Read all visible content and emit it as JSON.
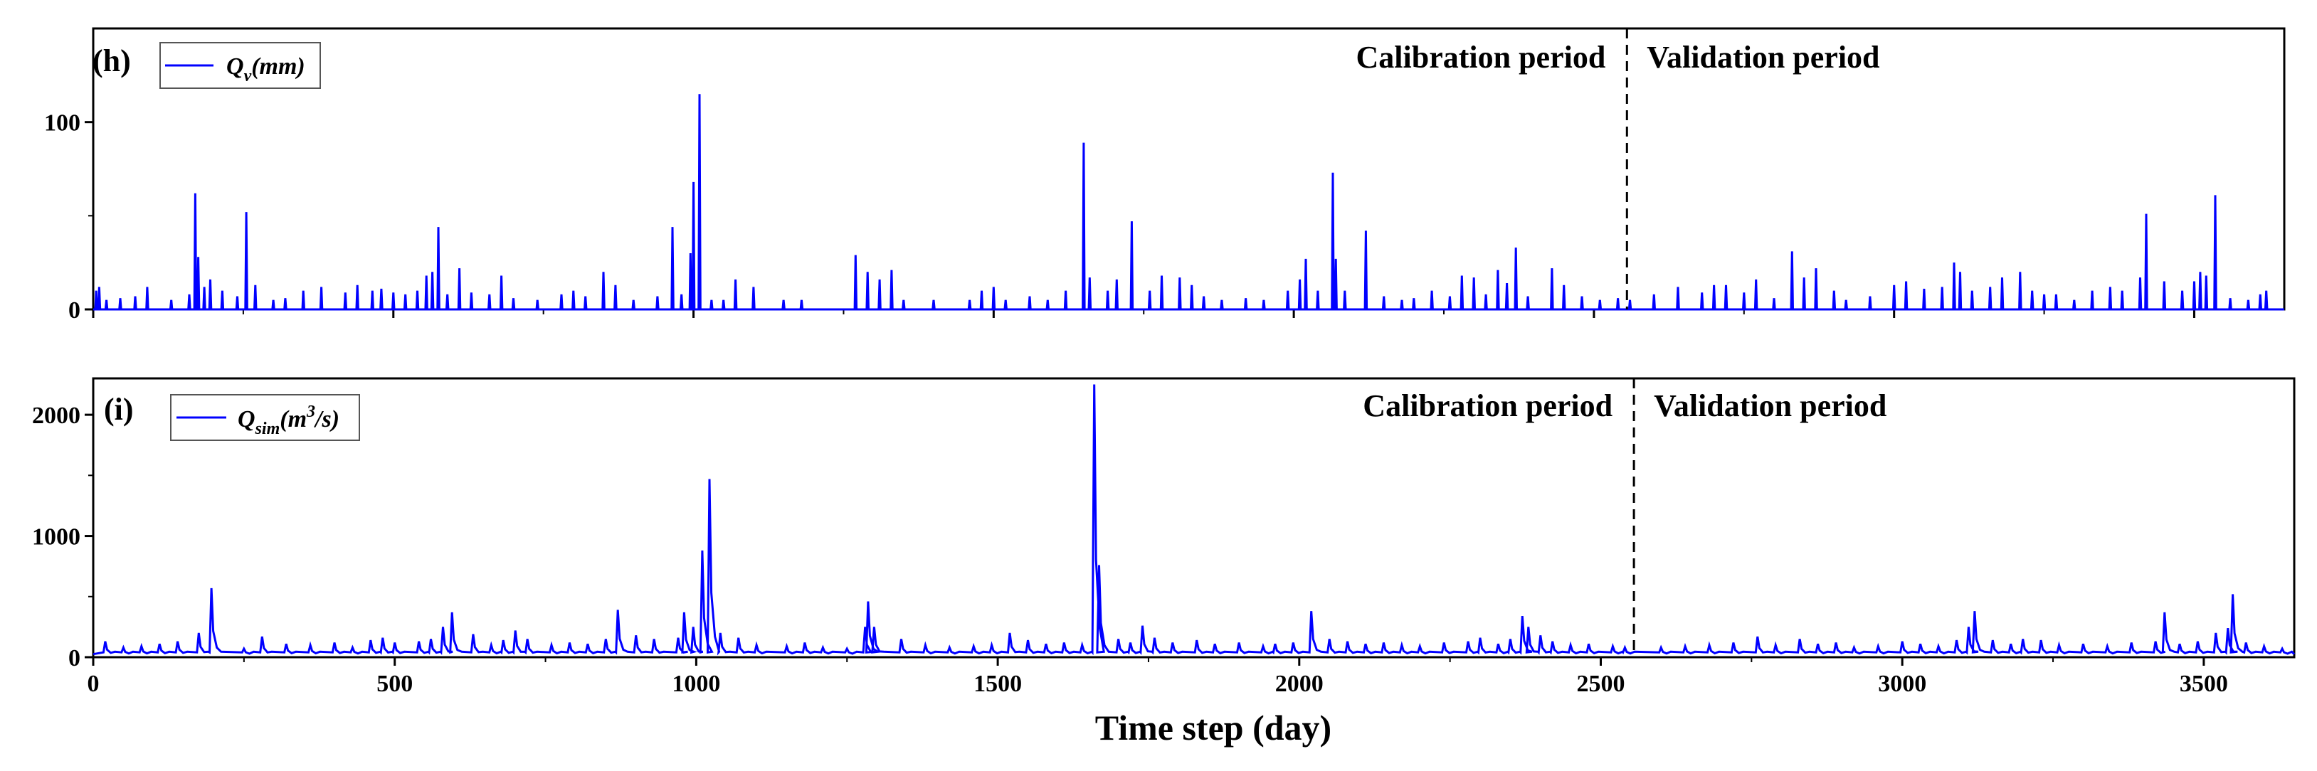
{
  "chart_data": [
    {
      "type": "line",
      "panel_label": "(h)",
      "legend": "Qv(mm)",
      "legend_parts": {
        "base": "Q",
        "sub": "v",
        "rest": "(mm)"
      },
      "series_color": "#0000ff",
      "xlim": [
        0,
        3650
      ],
      "ylim": [
        0,
        150
      ],
      "x_ticks": [
        0,
        500,
        1000,
        1500,
        2000,
        2500,
        3000,
        3500
      ],
      "y_ticks": [
        0,
        100
      ],
      "y_tick_labels": [
        "0",
        "100"
      ],
      "split_x": 2555,
      "calibration_label": "Calibration period",
      "validation_label": "Validation period",
      "peaks": [
        [
          5,
          10
        ],
        [
          10,
          12
        ],
        [
          22,
          5
        ],
        [
          45,
          6
        ],
        [
          70,
          7
        ],
        [
          90,
          12
        ],
        [
          130,
          5
        ],
        [
          160,
          8
        ],
        [
          170,
          62
        ],
        [
          175,
          28
        ],
        [
          185,
          12
        ],
        [
          195,
          16
        ],
        [
          215,
          10
        ],
        [
          240,
          7
        ],
        [
          255,
          52
        ],
        [
          270,
          13
        ],
        [
          300,
          5
        ],
        [
          320,
          6
        ],
        [
          350,
          10
        ],
        [
          380,
          12
        ],
        [
          420,
          9
        ],
        [
          440,
          13
        ],
        [
          465,
          10
        ],
        [
          480,
          11
        ],
        [
          500,
          9
        ],
        [
          520,
          8
        ],
        [
          540,
          10
        ],
        [
          555,
          18
        ],
        [
          565,
          20
        ],
        [
          575,
          44
        ],
        [
          590,
          8
        ],
        [
          610,
          22
        ],
        [
          630,
          9
        ],
        [
          660,
          8
        ],
        [
          680,
          18
        ],
        [
          700,
          6
        ],
        [
          740,
          5
        ],
        [
          780,
          8
        ],
        [
          800,
          10
        ],
        [
          820,
          7
        ],
        [
          850,
          20
        ],
        [
          870,
          13
        ],
        [
          900,
          5
        ],
        [
          940,
          7
        ],
        [
          965,
          44
        ],
        [
          980,
          8
        ],
        [
          995,
          30
        ],
        [
          1000,
          68
        ],
        [
          1010,
          115
        ],
        [
          1030,
          5
        ],
        [
          1050,
          5
        ],
        [
          1070,
          16
        ],
        [
          1100,
          12
        ],
        [
          1150,
          5
        ],
        [
          1180,
          5
        ],
        [
          1270,
          29
        ],
        [
          1290,
          20
        ],
        [
          1310,
          16
        ],
        [
          1330,
          21
        ],
        [
          1350,
          5
        ],
        [
          1400,
          5
        ],
        [
          1460,
          5
        ],
        [
          1480,
          10
        ],
        [
          1500,
          12
        ],
        [
          1520,
          5
        ],
        [
          1560,
          7
        ],
        [
          1590,
          5
        ],
        [
          1620,
          10
        ],
        [
          1650,
          89
        ],
        [
          1660,
          17
        ],
        [
          1690,
          10
        ],
        [
          1705,
          16
        ],
        [
          1730,
          47
        ],
        [
          1760,
          10
        ],
        [
          1780,
          18
        ],
        [
          1810,
          17
        ],
        [
          1830,
          13
        ],
        [
          1850,
          7
        ],
        [
          1880,
          5
        ],
        [
          1920,
          6
        ],
        [
          1950,
          5
        ],
        [
          1990,
          10
        ],
        [
          2010,
          16
        ],
        [
          2020,
          27
        ],
        [
          2040,
          10
        ],
        [
          2065,
          73
        ],
        [
          2070,
          27
        ],
        [
          2085,
          10
        ],
        [
          2120,
          42
        ],
        [
          2150,
          7
        ],
        [
          2180,
          5
        ],
        [
          2200,
          6
        ],
        [
          2230,
          10
        ],
        [
          2260,
          7
        ],
        [
          2280,
          18
        ],
        [
          2300,
          17
        ],
        [
          2320,
          8
        ],
        [
          2340,
          21
        ],
        [
          2355,
          14
        ],
        [
          2370,
          33
        ],
        [
          2390,
          7
        ],
        [
          2430,
          22
        ],
        [
          2450,
          13
        ],
        [
          2480,
          7
        ],
        [
          2510,
          5
        ],
        [
          2540,
          6
        ],
        [
          2560,
          5
        ],
        [
          2600,
          8
        ],
        [
          2640,
          12
        ],
        [
          2680,
          9
        ],
        [
          2700,
          13
        ],
        [
          2720,
          13
        ],
        [
          2750,
          9
        ],
        [
          2770,
          16
        ],
        [
          2800,
          6
        ],
        [
          2830,
          31
        ],
        [
          2850,
          17
        ],
        [
          2870,
          22
        ],
        [
          2900,
          10
        ],
        [
          2920,
          5
        ],
        [
          2960,
          7
        ],
        [
          3000,
          13
        ],
        [
          3020,
          15
        ],
        [
          3050,
          11
        ],
        [
          3080,
          12
        ],
        [
          3100,
          25
        ],
        [
          3110,
          20
        ],
        [
          3130,
          10
        ],
        [
          3160,
          12
        ],
        [
          3180,
          17
        ],
        [
          3210,
          20
        ],
        [
          3230,
          10
        ],
        [
          3250,
          8
        ],
        [
          3270,
          8
        ],
        [
          3300,
          5
        ],
        [
          3330,
          10
        ],
        [
          3360,
          12
        ],
        [
          3380,
          10
        ],
        [
          3410,
          17
        ],
        [
          3420,
          51
        ],
        [
          3450,
          15
        ],
        [
          3480,
          10
        ],
        [
          3500,
          15
        ],
        [
          3510,
          20
        ],
        [
          3520,
          18
        ],
        [
          3535,
          61
        ],
        [
          3560,
          6
        ],
        [
          3590,
          5
        ],
        [
          3610,
          8
        ],
        [
          3620,
          10
        ]
      ]
    },
    {
      "type": "line",
      "panel_label": "(i)",
      "legend": "Qsim(m3/s)",
      "legend_parts": {
        "base": "Q",
        "sub": "sim",
        "rest": "(m",
        "sup": "3",
        "tail": "/s)"
      },
      "series_color": "#0000ff",
      "xlabel": "Time step (day)",
      "xlim": [
        0,
        3650
      ],
      "ylim": [
        0,
        2300
      ],
      "x_ticks": [
        0,
        500,
        1000,
        1500,
        2000,
        2500,
        3000,
        3500
      ],
      "x_tick_labels": [
        "0",
        "500",
        "1000",
        "1500",
        "2000",
        "2500",
        "3000",
        "3500"
      ],
      "y_ticks": [
        0,
        1000,
        2000
      ],
      "y_tick_labels": [
        "0",
        "1000",
        "2000"
      ],
      "split_x": 2555,
      "calibration_label": "Calibration period",
      "validation_label": "Validation period",
      "peaks": [
        [
          20,
          130
        ],
        [
          50,
          80
        ],
        [
          80,
          90
        ],
        [
          110,
          110
        ],
        [
          140,
          130
        ],
        [
          175,
          200
        ],
        [
          196,
          570
        ],
        [
          250,
          70
        ],
        [
          280,
          170
        ],
        [
          320,
          110
        ],
        [
          360,
          100
        ],
        [
          400,
          120
        ],
        [
          430,
          80
        ],
        [
          460,
          140
        ],
        [
          480,
          160
        ],
        [
          500,
          120
        ],
        [
          540,
          130
        ],
        [
          560,
          150
        ],
        [
          580,
          250
        ],
        [
          595,
          370
        ],
        [
          630,
          190
        ],
        [
          660,
          100
        ],
        [
          680,
          140
        ],
        [
          700,
          220
        ],
        [
          720,
          150
        ],
        [
          760,
          100
        ],
        [
          790,
          120
        ],
        [
          820,
          110
        ],
        [
          850,
          150
        ],
        [
          870,
          390
        ],
        [
          900,
          180
        ],
        [
          930,
          150
        ],
        [
          970,
          160
        ],
        [
          980,
          370
        ],
        [
          995,
          250
        ],
        [
          1010,
          880
        ],
        [
          1022,
          1470
        ],
        [
          1040,
          200
        ],
        [
          1070,
          160
        ],
        [
          1100,
          100
        ],
        [
          1150,
          90
        ],
        [
          1180,
          120
        ],
        [
          1210,
          80
        ],
        [
          1250,
          70
        ],
        [
          1280,
          250
        ],
        [
          1285,
          460
        ],
        [
          1295,
          250
        ],
        [
          1340,
          150
        ],
        [
          1380,
          100
        ],
        [
          1420,
          80
        ],
        [
          1460,
          90
        ],
        [
          1490,
          100
        ],
        [
          1520,
          200
        ],
        [
          1550,
          140
        ],
        [
          1580,
          110
        ],
        [
          1610,
          120
        ],
        [
          1640,
          100
        ],
        [
          1660,
          2250
        ],
        [
          1668,
          760
        ],
        [
          1700,
          150
        ],
        [
          1720,
          120
        ],
        [
          1740,
          260
        ],
        [
          1760,
          160
        ],
        [
          1790,
          120
        ],
        [
          1830,
          140
        ],
        [
          1860,
          110
        ],
        [
          1900,
          120
        ],
        [
          1940,
          90
        ],
        [
          1960,
          110
        ],
        [
          1990,
          120
        ],
        [
          2020,
          380
        ],
        [
          2050,
          150
        ],
        [
          2080,
          130
        ],
        [
          2110,
          110
        ],
        [
          2140,
          120
        ],
        [
          2170,
          100
        ],
        [
          2200,
          90
        ],
        [
          2240,
          120
        ],
        [
          2280,
          130
        ],
        [
          2300,
          160
        ],
        [
          2330,
          110
        ],
        [
          2350,
          150
        ],
        [
          2370,
          340
        ],
        [
          2380,
          250
        ],
        [
          2400,
          180
        ],
        [
          2420,
          130
        ],
        [
          2450,
          100
        ],
        [
          2480,
          110
        ],
        [
          2520,
          90
        ],
        [
          2540,
          80
        ],
        [
          2600,
          80
        ],
        [
          2640,
          90
        ],
        [
          2680,
          100
        ],
        [
          2720,
          120
        ],
        [
          2760,
          170
        ],
        [
          2790,
          100
        ],
        [
          2830,
          150
        ],
        [
          2860,
          110
        ],
        [
          2890,
          120
        ],
        [
          2920,
          80
        ],
        [
          2960,
          90
        ],
        [
          3000,
          130
        ],
        [
          3030,
          110
        ],
        [
          3060,
          90
        ],
        [
          3090,
          140
        ],
        [
          3110,
          250
        ],
        [
          3120,
          380
        ],
        [
          3150,
          140
        ],
        [
          3180,
          110
        ],
        [
          3200,
          150
        ],
        [
          3230,
          140
        ],
        [
          3260,
          100
        ],
        [
          3300,
          110
        ],
        [
          3340,
          90
        ],
        [
          3380,
          120
        ],
        [
          3420,
          130
        ],
        [
          3435,
          370
        ],
        [
          3460,
          110
        ],
        [
          3490,
          130
        ],
        [
          3520,
          200
        ],
        [
          3540,
          240
        ],
        [
          3548,
          520
        ],
        [
          3570,
          120
        ],
        [
          3600,
          90
        ],
        [
          3630,
          70
        ]
      ]
    }
  ]
}
